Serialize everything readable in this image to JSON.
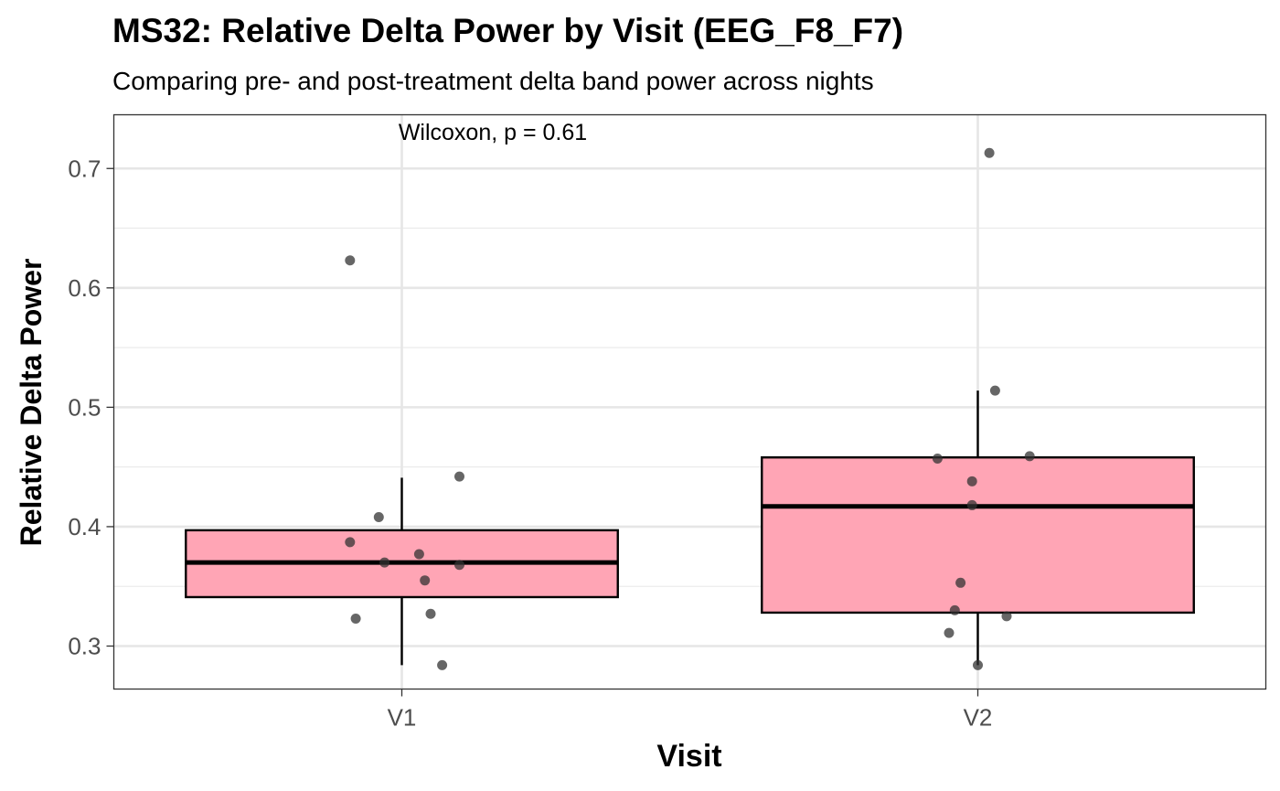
{
  "chart_data": {
    "type": "box",
    "title": "MS32: Relative Delta Power by Visit (EEG_F8_F7)",
    "subtitle": "Comparing pre- and post-treatment delta band power across nights",
    "xlabel": "Visit",
    "ylabel": "Relative Delta Power",
    "annotation": "Wilcoxon, p = 0.61",
    "categories": [
      "V1",
      "V2"
    ],
    "ylim": [
      0.264,
      0.745
    ],
    "yticks": [
      0.3,
      0.4,
      0.5,
      0.6,
      0.7
    ],
    "ytick_labels": [
      "0.3",
      "0.4",
      "0.5",
      "0.6",
      "0.7"
    ],
    "grid": true,
    "legend": "none",
    "box_fill": "#ffa5b5",
    "point_color": "#333333",
    "boxes": [
      {
        "category": "V1",
        "whisker_low": 0.284,
        "q1": 0.341,
        "median": 0.37,
        "q3": 0.397,
        "whisker_high": 0.441
      },
      {
        "category": "V2",
        "whisker_low": 0.284,
        "q1": 0.328,
        "median": 0.417,
        "q3": 0.458,
        "whisker_high": 0.514
      }
    ],
    "points": [
      {
        "category": "V1",
        "jitter": -0.09,
        "value": 0.623
      },
      {
        "category": "V1",
        "jitter": 0.1,
        "value": 0.442
      },
      {
        "category": "V1",
        "jitter": -0.04,
        "value": 0.408
      },
      {
        "category": "V1",
        "jitter": -0.09,
        "value": 0.387
      },
      {
        "category": "V1",
        "jitter": 0.03,
        "value": 0.377
      },
      {
        "category": "V1",
        "jitter": -0.03,
        "value": 0.37
      },
      {
        "category": "V1",
        "jitter": 0.1,
        "value": 0.368
      },
      {
        "category": "V1",
        "jitter": 0.04,
        "value": 0.355
      },
      {
        "category": "V1",
        "jitter": 0.05,
        "value": 0.327
      },
      {
        "category": "V1",
        "jitter": -0.08,
        "value": 0.323
      },
      {
        "category": "V1",
        "jitter": 0.07,
        "value": 0.284
      },
      {
        "category": "V2",
        "jitter": 0.02,
        "value": 0.713
      },
      {
        "category": "V2",
        "jitter": 0.03,
        "value": 0.514
      },
      {
        "category": "V2",
        "jitter": 0.09,
        "value": 0.459
      },
      {
        "category": "V2",
        "jitter": -0.07,
        "value": 0.457
      },
      {
        "category": "V2",
        "jitter": -0.01,
        "value": 0.438
      },
      {
        "category": "V2",
        "jitter": -0.01,
        "value": 0.418
      },
      {
        "category": "V2",
        "jitter": -0.03,
        "value": 0.353
      },
      {
        "category": "V2",
        "jitter": -0.04,
        "value": 0.33
      },
      {
        "category": "V2",
        "jitter": 0.05,
        "value": 0.325
      },
      {
        "category": "V2",
        "jitter": -0.05,
        "value": 0.311
      },
      {
        "category": "V2",
        "jitter": 0.0,
        "value": 0.284
      }
    ]
  }
}
